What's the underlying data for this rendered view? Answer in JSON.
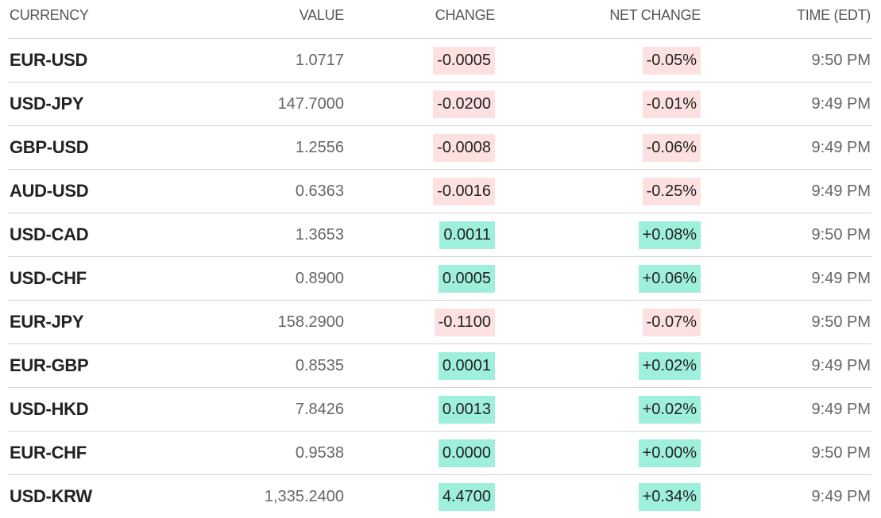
{
  "table": {
    "header": [
      "CURRENCY",
      "VALUE",
      "CHANGE",
      "NET CHANGE",
      "TIME (EDT)"
    ],
    "rows": [
      [
        "EUR-USD",
        "1.0717",
        "-0.0005",
        "-0.05%",
        "9:50 PM"
      ],
      [
        "USD-JPY",
        "147.7000",
        "-0.0200",
        "-0.01%",
        "9:49 PM"
      ],
      [
        "GBP-USD",
        "1.2556",
        "-0.0008",
        "-0.06%",
        "9:49 PM"
      ],
      [
        "AUD-USD",
        "0.6363",
        "-0.0016",
        "-0.25%",
        "9:49 PM"
      ],
      [
        "USD-CAD",
        "1.3653",
        "0.0011",
        "+0.08%",
        "9:50 PM"
      ],
      [
        "USD-CHF",
        "0.8900",
        "0.0005",
        "+0.06%",
        "9:49 PM"
      ],
      [
        "EUR-JPY",
        "158.2900",
        "-0.1100",
        "-0.07%",
        "9:50 PM"
      ],
      [
        "EUR-GBP",
        "0.8535",
        "0.0001",
        "+0.02%",
        "9:49 PM"
      ],
      [
        "USD-HKD",
        "7.8426",
        "0.0013",
        "+0.02%",
        "9:49 PM"
      ],
      [
        "EUR-CHF",
        "0.9538",
        "0.0000",
        "+0.00%",
        "9:50 PM"
      ],
      [
        "USD-KRW",
        "1,335.2400",
        "4.4700",
        "+0.34%",
        "9:49 PM"
      ]
    ]
  }
}
